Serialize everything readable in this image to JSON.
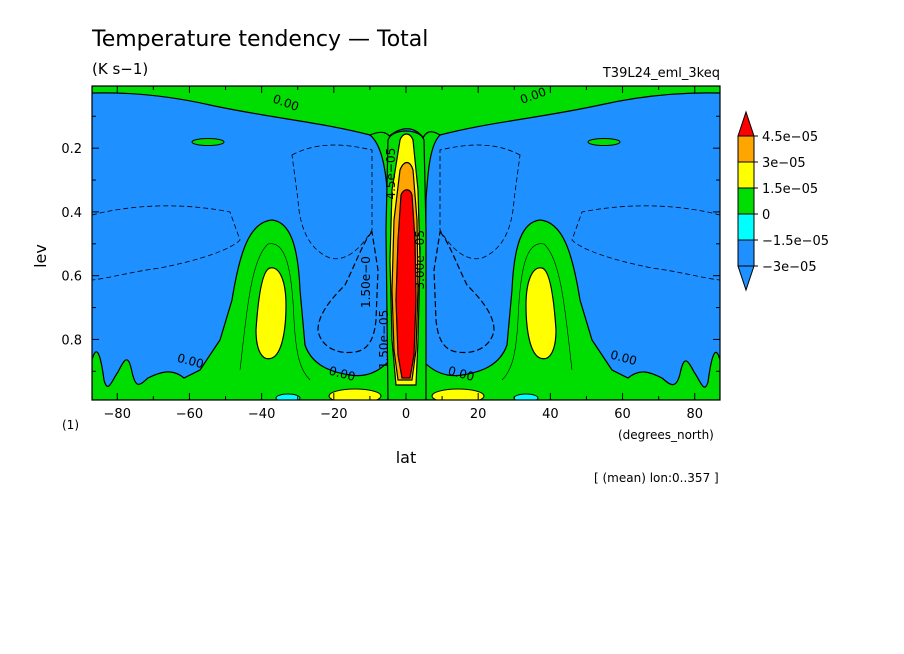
{
  "chart_data": {
    "type": "heatmap",
    "title": "Temperature tendency — Total",
    "units": "(K s−1)",
    "experiment": "T39L24_eml_3keq",
    "xlabel": "lat",
    "x_units": "(degrees_north)",
    "ylabel": "lev",
    "y_units": "(1)",
    "footnote": "[ (mean) lon:0..357 ]",
    "xlim": [
      -87,
      87
    ],
    "ylim": [
      0.99,
      0.005
    ],
    "x_ticks": [
      -80,
      -60,
      -40,
      -20,
      0,
      20,
      40,
      60,
      80
    ],
    "x_tick_labels": [
      "−80",
      "−60",
      "−40",
      "−20",
      "0",
      "20",
      "40",
      "60",
      "80"
    ],
    "y_ticks": [
      0.2,
      0.4,
      0.6,
      0.8
    ],
    "y_tick_labels": [
      "0.2",
      "0.4",
      "0.6",
      "0.8"
    ],
    "colorbar": {
      "labels": [
        "4.5e−05",
        "3e−05",
        "1.5e−05",
        "0",
        "−1.5e−05",
        "−3e−05"
      ],
      "levels": [
        4.5e-05,
        3e-05,
        1.5e-05,
        0,
        -1.5e-05,
        -3e-05
      ],
      "colors": [
        "#ff0000",
        "#ffa500",
        "#ffff00",
        "#00dd00",
        "#00ffff",
        "#1e90ff",
        "#1e90ff"
      ]
    },
    "contour_labels": [
      {
        "text": "0.00",
        "x": -60,
        "y": 0.88
      },
      {
        "text": "0.00",
        "x": -18,
        "y": 0.92
      },
      {
        "text": "0.00",
        "x": 15,
        "y": 0.92
      },
      {
        "text": "0.00",
        "x": 60,
        "y": 0.87
      },
      {
        "text": "1.50e−0",
        "x": -10,
        "y": 0.62
      },
      {
        "text": "3.00e−05",
        "x": 5,
        "y": 0.55
      },
      {
        "text": "4.5e−05",
        "x": -3,
        "y": 0.28
      },
      {
        "text": "1.50e−05",
        "x": -5,
        "y": 0.8
      }
    ],
    "top_labels": [
      "0.00",
      "0.00"
    ],
    "background_level": -1.5e-05,
    "regions": [
      {
        "name": "top-band",
        "level": 0
      },
      {
        "name": "central-column",
        "level": 0
      },
      {
        "name": "midlat-lobe-south",
        "level": 0
      },
      {
        "name": "midlat-lobe-north",
        "level": 0
      },
      {
        "name": "subtropical-minimum-south",
        "level": -3e-05
      },
      {
        "name": "subtropical-minimum-north",
        "level": -3e-05
      },
      {
        "name": "equatorial-maximum",
        "level": 4.5e-05
      }
    ]
  }
}
